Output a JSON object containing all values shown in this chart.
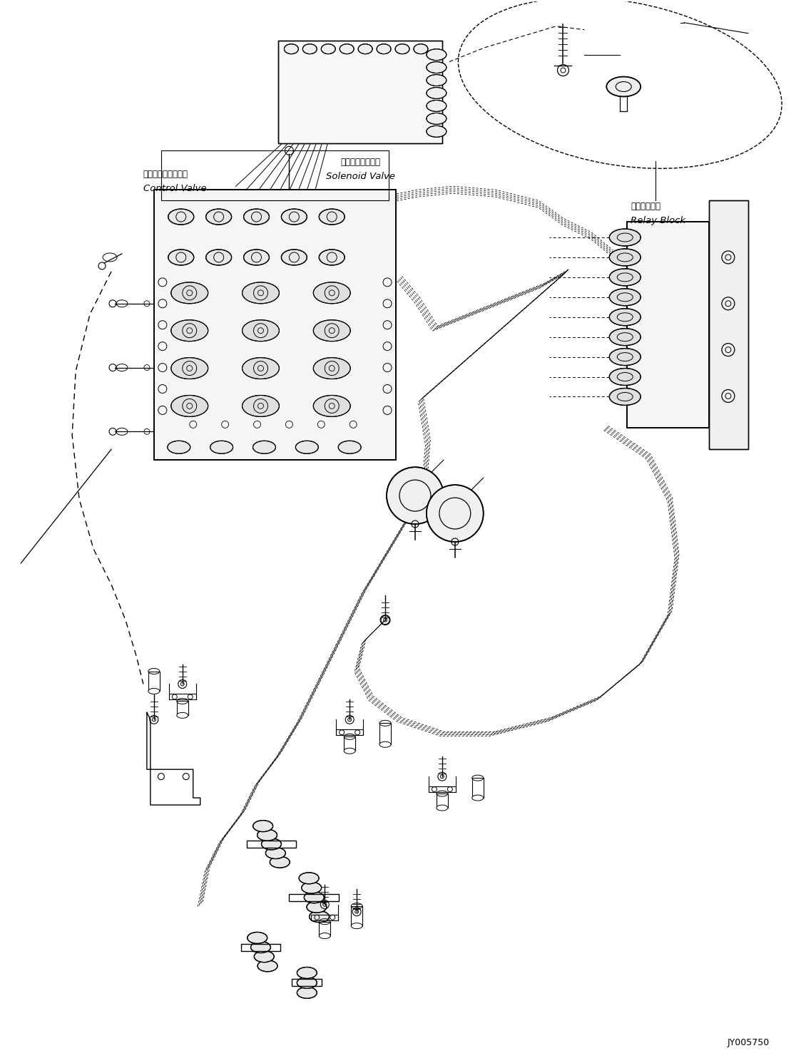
{
  "title": "",
  "background_color": "#ffffff",
  "line_color": "#000000",
  "label_solenoid_jp": "ソレノイドバルブ",
  "label_solenoid_en": "Solenoid Valve",
  "label_control_jp": "コントロールバルブ",
  "label_control_en": "Control Valve",
  "label_relay_jp": "中継ブロック",
  "label_relay_en": "Relay Block",
  "part_number": "JY005750",
  "fig_width": 11.37,
  "fig_height": 14.91,
  "dpi": 100
}
